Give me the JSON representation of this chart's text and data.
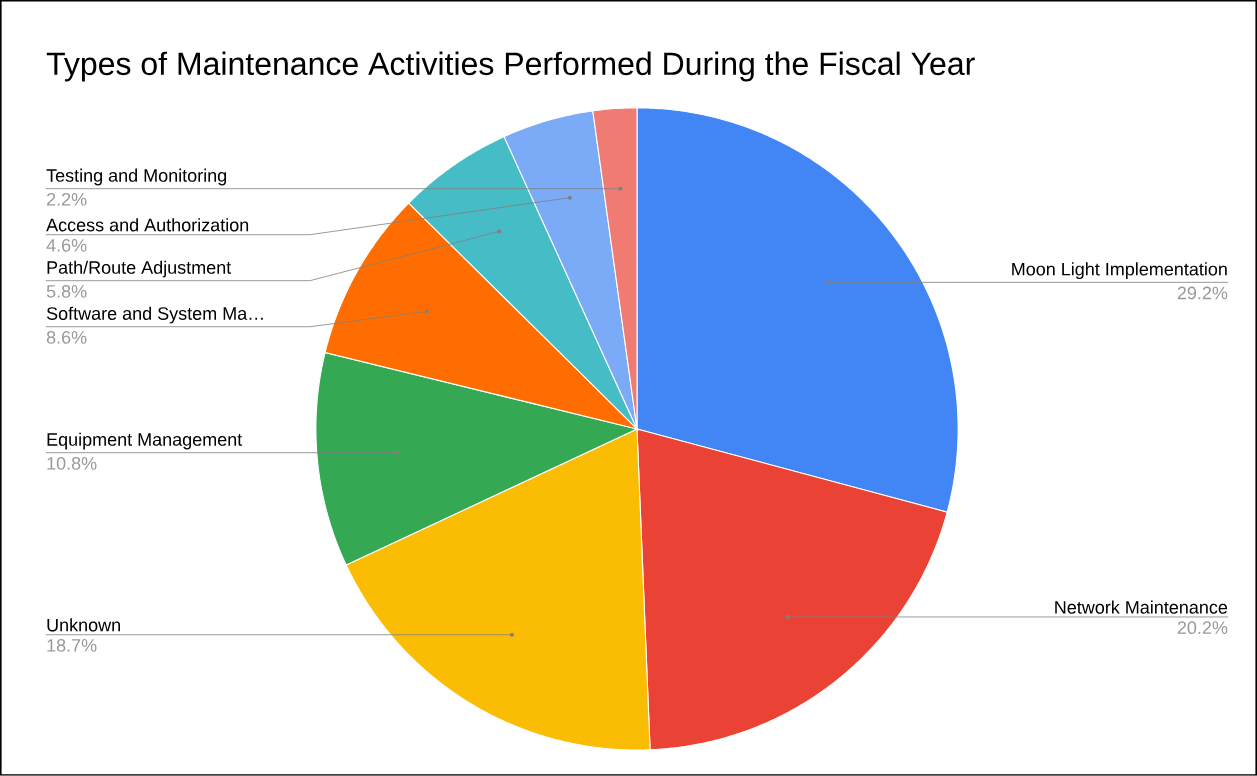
{
  "chart_data": {
    "type": "pie",
    "title": "Types of Maintenance Activities Performed During the Fiscal Year",
    "categories": [
      "Moon Light Implementation",
      "Network Maintenance",
      "Unknown",
      "Equipment Management",
      "Software and System Ma…",
      "Path/Route Adjustment",
      "Access and Authorization",
      "Testing and Monitoring"
    ],
    "values": [
      29.2,
      20.2,
      18.7,
      10.8,
      8.6,
      5.8,
      4.6,
      2.2
    ],
    "value_labels": [
      "29.2%",
      "20.2%",
      "18.7%",
      "10.8%",
      "8.6%",
      "5.8%",
      "4.6%",
      "2.2%"
    ],
    "colors": [
      "#4285f4",
      "#ea4335",
      "#fbbc04",
      "#34a853",
      "#ff6d01",
      "#46bdc6",
      "#7baaf7",
      "#f07b72"
    ]
  }
}
